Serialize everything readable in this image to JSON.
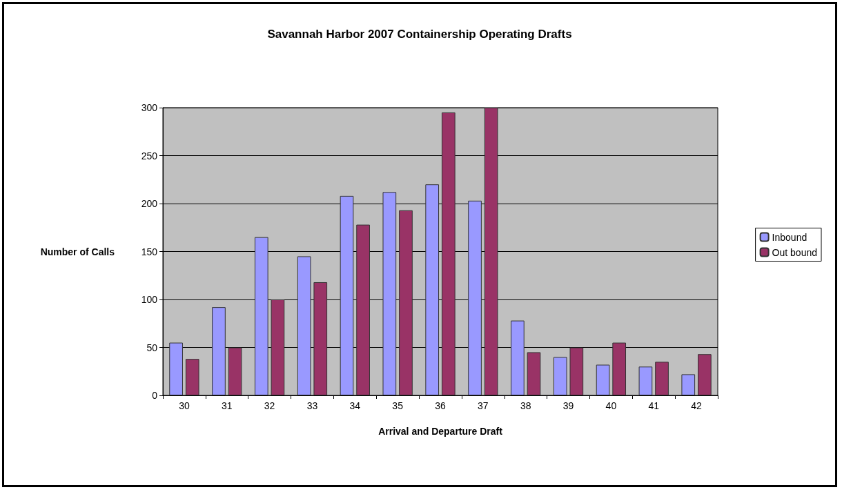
{
  "chart_data": {
    "type": "bar",
    "title": "Savannah Harbor 2007 Containership Operating Drafts",
    "xlabel": "Arrival and Departure Draft",
    "ylabel": "Number of Calls",
    "categories": [
      "30",
      "31",
      "32",
      "33",
      "34",
      "35",
      "36",
      "37",
      "38",
      "39",
      "40",
      "41",
      "42"
    ],
    "series": [
      {
        "name": "Inbound",
        "color": "#9999ff",
        "values": [
          55,
          92,
          165,
          145,
          208,
          212,
          220,
          203,
          78,
          40,
          32,
          30,
          22
        ]
      },
      {
        "name": "Out bound",
        "color": "#993366",
        "values": [
          38,
          50,
          100,
          118,
          178,
          193,
          295,
          300,
          45,
          50,
          55,
          35,
          43
        ]
      }
    ],
    "ylim": [
      0,
      300
    ],
    "yticks": [
      0,
      50,
      100,
      150,
      200,
      250,
      300
    ],
    "grid": "y",
    "legend": "right"
  }
}
